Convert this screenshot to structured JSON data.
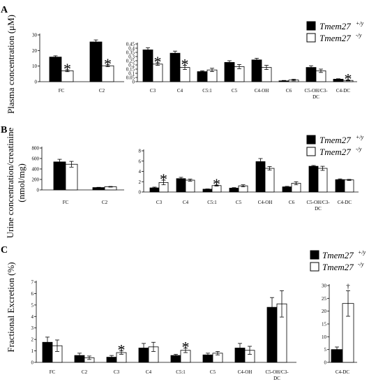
{
  "legend": {
    "wt_label": "Tmem27",
    "wt_sup": "+/y",
    "ko_label": "Tmem27",
    "ko_sup": "-/y",
    "wt_color": "#000000",
    "ko_color": "#ffffff"
  },
  "panels": [
    {
      "letter": "A",
      "ylabel": "Plasma concentration (μM)"
    },
    {
      "letter": "B",
      "ylabel": "Urine concentration/creatinine",
      "ylabel2": "(nmol/mg)"
    },
    {
      "letter": "C",
      "ylabel": "Fractional Excretion (%)"
    }
  ],
  "chart_data": [
    {
      "id": "A1",
      "type": "bar",
      "ylim": [
        0,
        30
      ],
      "yticks": [
        "0",
        "10",
        "20",
        "30"
      ],
      "categories": [
        "FC",
        "C2"
      ],
      "series": [
        {
          "values": [
            15.8,
            25.5
          ],
          "errors": [
            0.8,
            1.3
          ]
        },
        {
          "values": [
            7.0,
            10.2
          ],
          "errors": [
            0.6,
            0.6
          ]
        }
      ],
      "markers": [
        {
          "cat": 0,
          "text": "*"
        },
        {
          "cat": 1,
          "text": "*"
        }
      ]
    },
    {
      "id": "A2",
      "type": "bar",
      "ylim": [
        0,
        0.45
      ],
      "yticks": [
        "0",
        "0.05",
        "0.1",
        "0.15",
        "0.2",
        "0.25",
        "0.3",
        "0.35",
        "0.4",
        "0.45"
      ],
      "categories": [
        "C3",
        "C4",
        "C5:1",
        "C5",
        "C4-OH",
        "C6",
        "C5-OH/C3-|DC",
        "C4-DC"
      ],
      "series": [
        {
          "values": [
            0.38,
            0.34,
            0.12,
            0.23,
            0.26,
            0.01,
            0.17,
            0.03
          ],
          "errors": [
            0.025,
            0.025,
            0.01,
            0.02,
            0.02,
            0.005,
            0.02,
            0.005
          ]
        },
        {
          "values": [
            0.21,
            0.17,
            0.14,
            0.18,
            0.17,
            0.02,
            0.13,
            0.015
          ],
          "errors": [
            0.015,
            0.025,
            0.02,
            0.025,
            0.025,
            0.01,
            0.02,
            0.005
          ]
        }
      ],
      "markers": [
        {
          "cat": 0,
          "text": "*"
        },
        {
          "cat": 1,
          "text": "*"
        },
        {
          "cat": 7,
          "text": "*"
        }
      ]
    },
    {
      "id": "B1",
      "type": "bar",
      "ylim": [
        0,
        800
      ],
      "yticks": [
        "0",
        "200",
        "400",
        "600",
        "800"
      ],
      "categories": [
        "FC",
        "C2"
      ],
      "series": [
        {
          "values": [
            535,
            45
          ],
          "errors": [
            50,
            5
          ]
        },
        {
          "values": [
            490,
            60
          ],
          "errors": [
            55,
            6
          ]
        }
      ],
      "markers": []
    },
    {
      "id": "B2",
      "type": "bar",
      "ylim": [
        0,
        8
      ],
      "yticks": [
        "0",
        "2",
        "4",
        "6",
        "8"
      ],
      "categories": [
        "C3",
        "C4",
        "C5:1",
        "C5",
        "C4-OH",
        "C6",
        "C5-OH/C3-|DC",
        "C4-DC"
      ],
      "series": [
        {
          "values": [
            0.8,
            2.6,
            0.55,
            0.75,
            5.9,
            1.0,
            5.0,
            2.4
          ],
          "errors": [
            0.15,
            0.25,
            0.05,
            0.1,
            0.6,
            0.1,
            0.15,
            0.15
          ]
        },
        {
          "values": [
            1.85,
            2.3,
            1.25,
            1.2,
            4.6,
            1.7,
            4.6,
            2.35
          ],
          "errors": [
            0.45,
            0.2,
            0.1,
            0.2,
            0.35,
            0.3,
            0.4,
            0.1
          ]
        }
      ],
      "markers": [
        {
          "cat": 0,
          "text": "*"
        },
        {
          "cat": 2,
          "text": "*"
        }
      ]
    },
    {
      "id": "C1",
      "type": "bar",
      "ylim": [
        0,
        7
      ],
      "yticks": [
        "0",
        "1",
        "2",
        "3",
        "4",
        "5",
        "6",
        "7"
      ],
      "categories": [
        "FC",
        "C2",
        "C3",
        "C4",
        "C5:1",
        "C5",
        "C4-OH",
        "C5-OH/C3-|DC"
      ],
      "series": [
        {
          "values": [
            1.75,
            0.6,
            0.45,
            1.25,
            0.6,
            0.65,
            1.25,
            4.8
          ],
          "errors": [
            0.45,
            0.2,
            0.15,
            0.4,
            0.1,
            0.15,
            0.4,
            0.85
          ]
        },
        {
          "values": [
            1.45,
            0.4,
            0.85,
            1.35,
            1.05,
            0.8,
            1.05,
            5.1
          ],
          "errors": [
            0.5,
            0.15,
            0.15,
            0.4,
            0.2,
            0.15,
            0.35,
            1.15
          ]
        }
      ],
      "markers": [
        {
          "cat": 2,
          "text": "*"
        },
        {
          "cat": 4,
          "text": "*"
        }
      ]
    },
    {
      "id": "C2",
      "type": "bar",
      "ylim": [
        0,
        30
      ],
      "yticks": [
        "0",
        "5",
        "10",
        "15",
        "20",
        "25",
        "30"
      ],
      "categories": [
        "C4-DC"
      ],
      "series": [
        {
          "values": [
            5.0
          ],
          "errors": [
            1.0
          ]
        },
        {
          "values": [
            23.0
          ],
          "errors": [
            5.0
          ]
        }
      ],
      "markers": [
        {
          "cat": 0,
          "text": "†"
        }
      ]
    }
  ]
}
